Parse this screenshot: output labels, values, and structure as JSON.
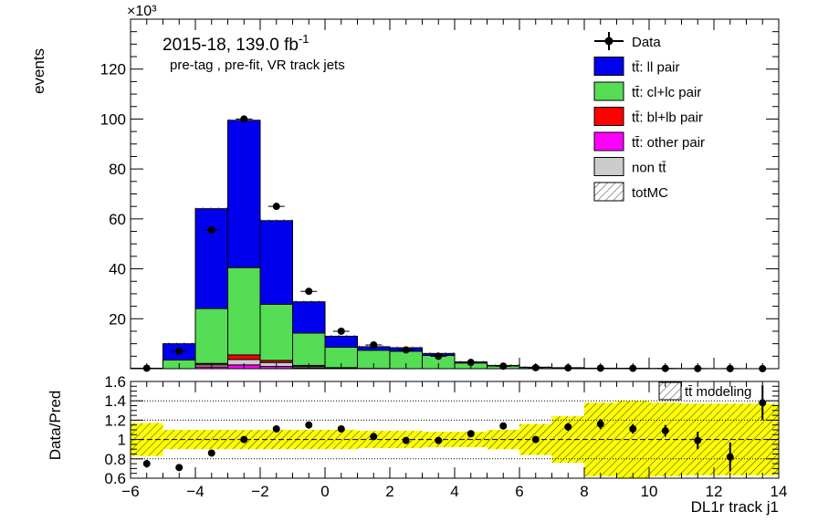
{
  "chart_data": {
    "type": "bar",
    "x_unit_edges": [
      -6,
      -5,
      -4,
      -3,
      -2,
      -1,
      0,
      1,
      2,
      3,
      4,
      5,
      6,
      7,
      8,
      9,
      10,
      11,
      12,
      13,
      14
    ],
    "bin_centers": [
      -5.5,
      -4.5,
      -3.5,
      -2.5,
      -1.5,
      -0.5,
      0.5,
      1.5,
      2.5,
      3.5,
      4.5,
      5.5,
      6.5,
      7.5,
      8.5,
      9.5,
      10.5,
      11.5,
      12.5,
      13.5
    ],
    "upper": {
      "ylabel": "events",
      "multiplier": "×10³",
      "xlim": [
        -6,
        14
      ],
      "ylim": [
        0,
        140
      ],
      "yticks": [
        20,
        40,
        60,
        80,
        100,
        120
      ],
      "stack": [
        {
          "name": "tt̄: other pair",
          "color": "#ff00ff",
          "values": [
            0,
            0,
            0.7,
            1.5,
            0.9,
            0.4,
            0.1,
            0,
            0,
            0,
            0,
            0,
            0,
            0,
            0,
            0,
            0,
            0,
            0,
            0
          ]
        },
        {
          "name": "non tt̄",
          "color": "#cccccc",
          "values": [
            0,
            0,
            0.8,
            2.2,
            1.6,
            0.6,
            0.2,
            0.1,
            0,
            0,
            0,
            0,
            0,
            0,
            0,
            0,
            0,
            0,
            0,
            0
          ]
        },
        {
          "name": "tt̄: bl+lb pair",
          "color": "#ff0000",
          "values": [
            0,
            0,
            0.6,
            1.8,
            0.8,
            0.3,
            0.1,
            0,
            0,
            0,
            0,
            0,
            0,
            0,
            0,
            0,
            0,
            0,
            0,
            0
          ]
        },
        {
          "name": "tt̄: cl+lc pair",
          "color": "#55dd55",
          "values": [
            0.1,
            3.5,
            22,
            35,
            22.5,
            13,
            8.2,
            7.3,
            7,
            5.3,
            2.3,
            1.1,
            0.5,
            0.3,
            0.15,
            0.1,
            0.05,
            0.02,
            0.01,
            0
          ]
        },
        {
          "name": "tt̄: ll pair",
          "color": "#0000ee",
          "values": [
            0.1,
            6.5,
            40,
            59,
            33.5,
            12.5,
            4.4,
            1.4,
            1.4,
            0.8,
            0.4,
            0.2,
            0.1,
            0.1,
            0.05,
            0.05,
            0.02,
            0.02,
            0.01,
            0.01
          ]
        }
      ],
      "data": {
        "name": "Data",
        "values": [
          0.2,
          7,
          55.5,
          100,
          65,
          31,
          15,
          9.5,
          7.5,
          5,
          2.5,
          1,
          0.4,
          0.3,
          0.2,
          0.15,
          0.1,
          0.05,
          0.05,
          0.02
        ]
      },
      "totmc_name": "totMC",
      "legend_placement": "top-right"
    },
    "lower": {
      "ylabel": "Data/Pred",
      "xlabel": "DL1r track j1",
      "xlim": [
        -6,
        14
      ],
      "ylim": [
        0.6,
        1.6
      ],
      "yticks": [
        "0.6",
        "0.8",
        "1",
        "1.2",
        "1.4",
        "1.6"
      ],
      "xticks": [
        "−6",
        "−4",
        "−2",
        "0",
        "2",
        "4",
        "6",
        "8",
        "10",
        "12",
        "14"
      ],
      "grid_lines": [
        0.8,
        1.0,
        1.2,
        1.4
      ],
      "band_name": "tt̄ modeling",
      "band_color": "#ffff00",
      "band_halfwidth": [
        0.17,
        0.1,
        0.1,
        0.1,
        0.1,
        0.1,
        0.1,
        0.09,
        0.09,
        0.08,
        0.08,
        0.1,
        0.16,
        0.24,
        0.38,
        0.4,
        0.38,
        0.37,
        0.37,
        0.37
      ],
      "ratio": [
        0.75,
        0.71,
        0.86,
        1.0,
        1.11,
        1.15,
        1.11,
        1.03,
        0.99,
        0.99,
        1.06,
        1.14,
        1.0,
        1.13,
        1.16,
        1.11,
        1.09,
        0.99,
        0.82,
        1.38
      ],
      "ratio_err": [
        0.04,
        0.01,
        0.01,
        0.01,
        0.01,
        0.01,
        0.01,
        0.01,
        0.01,
        0.02,
        0.02,
        0.03,
        0.03,
        0.04,
        0.05,
        0.05,
        0.06,
        0.09,
        0.15,
        0.18
      ]
    }
  },
  "annotations": {
    "lumi": "2015-18, 139.0 fb",
    "lumi_exp": "-1",
    "selection": "pre-tag ,  pre-fit, VR track jets"
  }
}
